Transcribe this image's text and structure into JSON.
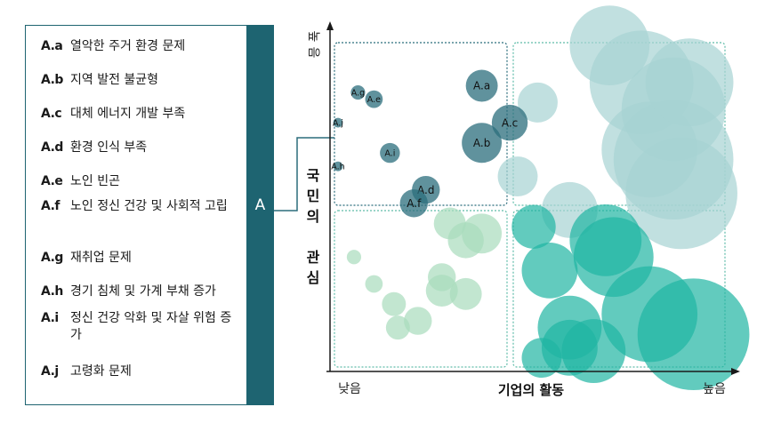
{
  "legend": {
    "group_label": "A",
    "items": [
      {
        "key": "A.a",
        "text": "열악한 주거 환경 문제"
      },
      {
        "key": "A.b",
        "text": "지역 발전 불균형"
      },
      {
        "key": "A.c",
        "text": "대체 에너지 개발 부족"
      },
      {
        "key": "A.d",
        "text": "환경 인식 부족"
      },
      {
        "key": "A.e",
        "text": "노인 빈곤"
      },
      {
        "key": "A.f",
        "text": "노인 정신 건강 및 사회적 고립"
      },
      {
        "key": "A.g",
        "text": "재취업 문제"
      },
      {
        "key": "A.h",
        "text": "경기 침체 및 가계 부채 증가"
      },
      {
        "key": "A.i",
        "text": "정신 건강 악화 및 자살 위험 증가"
      },
      {
        "key": "A.j",
        "text": "고령화 문제"
      }
    ]
  },
  "chart_data": {
    "type": "scatter",
    "xlabel": "기업의 활동",
    "ylabel": "국민의 관심",
    "x_low": "낮음",
    "x_high": "높음",
    "y_low": "",
    "y_high": "높음",
    "xlim": [
      0,
      100
    ],
    "ylim": [
      0,
      100
    ],
    "colors": {
      "dark": "#2b6d7c",
      "light_teal": "#a7d3d3",
      "mint": "#a8dcbc",
      "teal": "#1fb5a2",
      "axis": "#1a1a1a",
      "frame_dark": "#2b6d7c",
      "frame_light": "#5fbca9"
    },
    "quadrants": [
      {
        "name": "top-left",
        "style": "dark"
      },
      {
        "name": "top-right",
        "style": "light"
      },
      {
        "name": "bottom-left",
        "style": "light"
      },
      {
        "name": "bottom-right",
        "style": "teal"
      }
    ],
    "labeled_points": [
      {
        "label": "A.a",
        "x": 38,
        "y": 84,
        "size": 4
      },
      {
        "label": "A.b",
        "x": 38,
        "y": 67,
        "size": 5
      },
      {
        "label": "A.c",
        "x": 45,
        "y": 73,
        "size": 4.5
      },
      {
        "label": "A.d",
        "x": 24,
        "y": 53,
        "size": 3.5
      },
      {
        "label": "A.e",
        "x": 11,
        "y": 80,
        "size": 2.2
      },
      {
        "label": "A.f",
        "x": 21,
        "y": 49,
        "size": 3.5
      },
      {
        "label": "A.g",
        "x": 7,
        "y": 82,
        "size": 1.8
      },
      {
        "label": "A.h",
        "x": 2,
        "y": 60,
        "size": 1.2
      },
      {
        "label": "A.i",
        "x": 15,
        "y": 64,
        "size": 2.5
      },
      {
        "label": "A.j",
        "x": 2,
        "y": 73,
        "size": 1.2
      }
    ],
    "other_series": [
      {
        "group": "light_teal",
        "points": [
          {
            "x": 70,
            "y": 96,
            "size": 10
          },
          {
            "x": 52,
            "y": 79,
            "size": 5
          },
          {
            "x": 47,
            "y": 57,
            "size": 5
          },
          {
            "x": 60,
            "y": 47,
            "size": 7
          },
          {
            "x": 86,
            "y": 77,
            "size": 13
          },
          {
            "x": 80,
            "y": 65,
            "size": 12
          },
          {
            "x": 86,
            "y": 62,
            "size": 15
          },
          {
            "x": 88,
            "y": 52,
            "size": 14
          },
          {
            "x": 78,
            "y": 85,
            "size": 13
          },
          {
            "x": 90,
            "y": 85,
            "size": 11
          }
        ]
      },
      {
        "group": "mint",
        "points": [
          {
            "x": 30,
            "y": 43,
            "size": 4
          },
          {
            "x": 34,
            "y": 38,
            "size": 4.5
          },
          {
            "x": 38,
            "y": 40,
            "size": 5
          },
          {
            "x": 28,
            "y": 27,
            "size": 3.5
          },
          {
            "x": 28,
            "y": 23,
            "size": 4
          },
          {
            "x": 34,
            "y": 22,
            "size": 4
          },
          {
            "x": 6,
            "y": 33,
            "size": 1.8
          },
          {
            "x": 11,
            "y": 25,
            "size": 2.2
          },
          {
            "x": 16,
            "y": 19,
            "size": 3
          },
          {
            "x": 22,
            "y": 14,
            "size": 3.5
          },
          {
            "x": 17,
            "y": 12,
            "size": 3
          }
        ]
      },
      {
        "group": "teal",
        "points": [
          {
            "x": 51,
            "y": 42,
            "size": 5.5
          },
          {
            "x": 55,
            "y": 29,
            "size": 7
          },
          {
            "x": 71,
            "y": 33,
            "size": 10
          },
          {
            "x": 69,
            "y": 38,
            "size": 9
          },
          {
            "x": 80,
            "y": 16,
            "size": 12
          },
          {
            "x": 91,
            "y": 10,
            "size": 14
          },
          {
            "x": 53,
            "y": 3,
            "size": 5
          },
          {
            "x": 60,
            "y": 6,
            "size": 7
          },
          {
            "x": 66,
            "y": 5,
            "size": 8
          },
          {
            "x": 60,
            "y": 12,
            "size": 8
          }
        ]
      }
    ]
  }
}
